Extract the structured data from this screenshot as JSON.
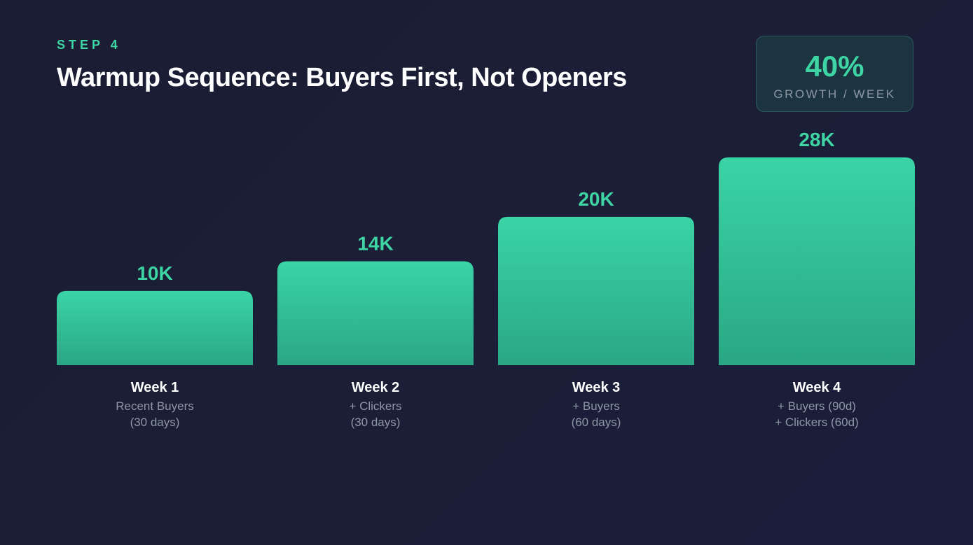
{
  "header": {
    "step": "STEP 4",
    "title": "Warmup Sequence: Buyers First, Not Openers"
  },
  "badge": {
    "value": "40%",
    "label": "GROWTH / WEEK"
  },
  "colors": {
    "accent": "#3ed4a4",
    "bar_top": "#3ad4a6",
    "bar_bottom": "#2aa784",
    "week_label": "#ffffff",
    "description": "#8e97a6"
  },
  "chart_data": {
    "type": "bar",
    "categories": [
      "Week 1",
      "Week 2",
      "Week 3",
      "Week 4"
    ],
    "values": [
      10000,
      14000,
      20000,
      28000
    ],
    "data_labels": [
      "10K",
      "14K",
      "20K",
      "28K"
    ],
    "descriptions": [
      [
        "Recent Buyers",
        "(30 days)"
      ],
      [
        "+ Clickers",
        "(30 days)"
      ],
      [
        "+ Buyers",
        "(60 days)"
      ],
      [
        "+ Buyers (90d)",
        "+ Clickers (60d)"
      ]
    ],
    "ylim": [
      0,
      28000
    ],
    "grid": false,
    "legend": "none"
  }
}
